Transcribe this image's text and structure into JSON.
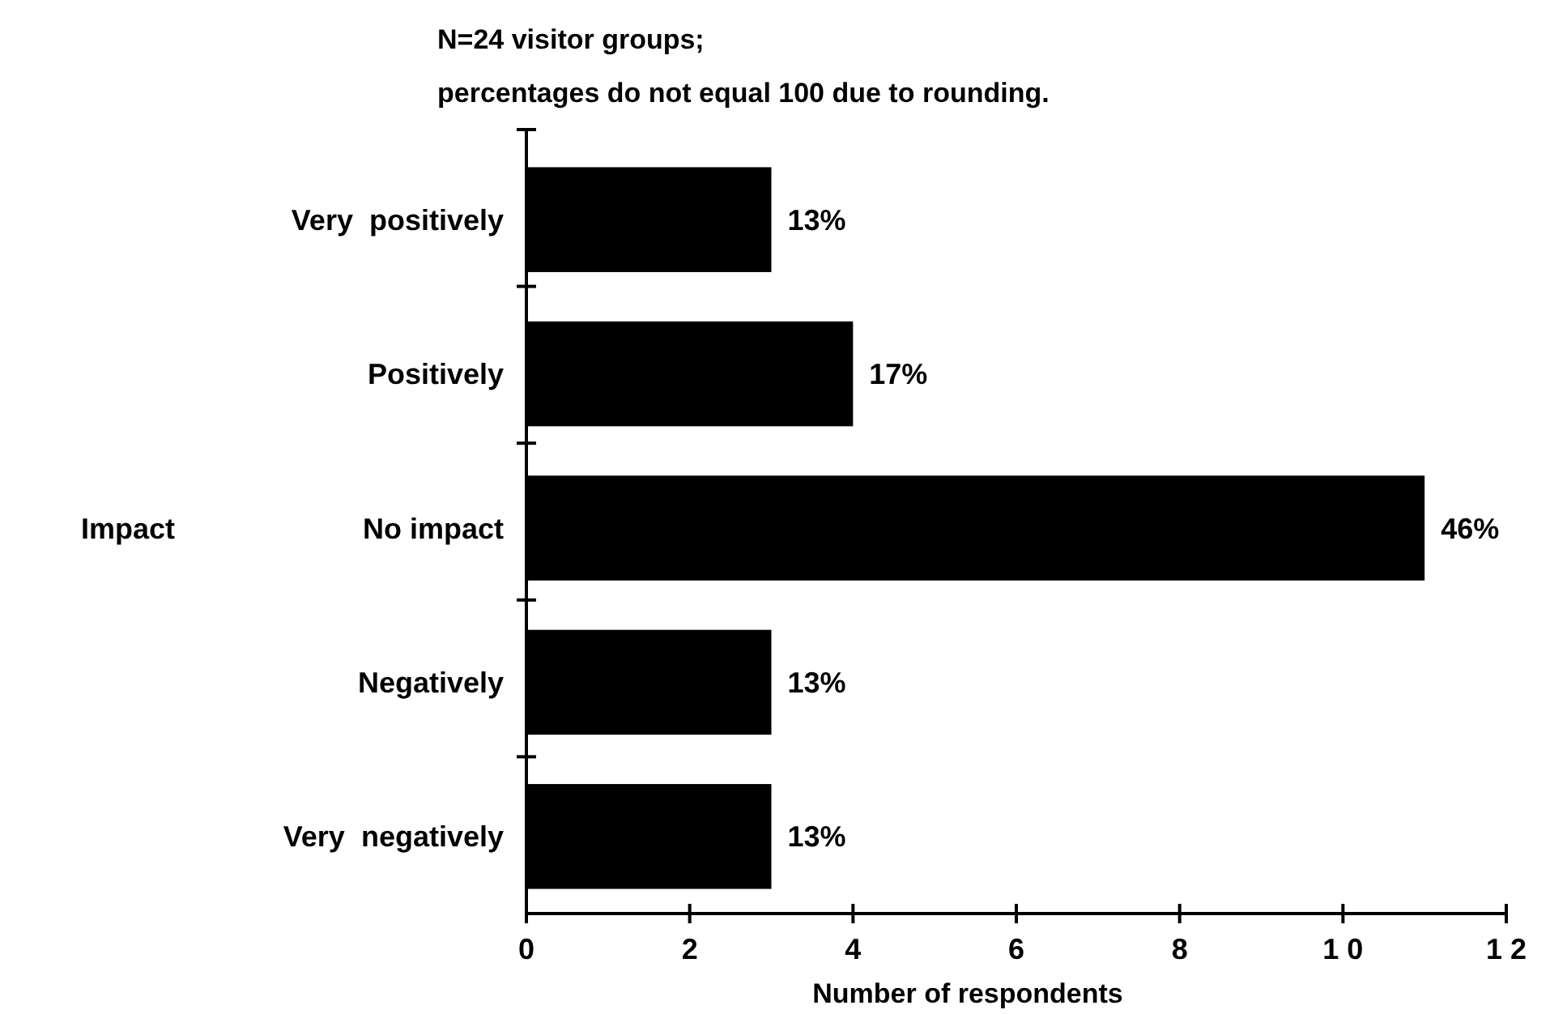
{
  "chart_data": {
    "type": "bar",
    "orientation": "horizontal",
    "title": "N=24 visitor groups;",
    "subtitle": "percentages do not equal 100 due to rounding.",
    "ylabel": "Impact",
    "xlabel": "Number of respondents",
    "categories": [
      "Very  positively",
      "Positively",
      "No impact",
      "Negatively",
      "Very  negatively"
    ],
    "values": [
      3,
      4,
      11,
      3,
      3
    ],
    "color": "#000000",
    "annotations": [
      {
        "text": "13%",
        "x": 3,
        "y": "Very  positively"
      },
      {
        "text": "17%",
        "x": 4,
        "y": "Positively"
      },
      {
        "text": "46%",
        "x": 11,
        "y": "No impact"
      },
      {
        "text": "13%",
        "x": 3,
        "y": "Negatively"
      },
      {
        "text": "13%",
        "x": 3,
        "y": "Very  negatively"
      }
    ],
    "xlim": [
      0,
      12
    ],
    "xticks": [
      0,
      2,
      4,
      6,
      8,
      {
        "value": 10,
        "label": "1 0"
      },
      {
        "value": 12,
        "label": "1 2"
      }
    ],
    "grid": false
  }
}
